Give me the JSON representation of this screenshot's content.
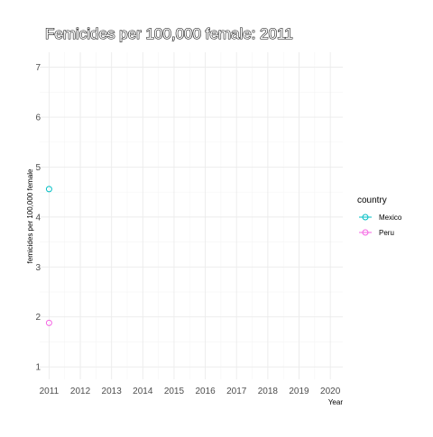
{
  "chart_data": {
    "type": "scatter",
    "title": "Femicides per 100,000 female: 2011",
    "xlabel": "Year",
    "ylabel": "femicides per 100,000 female",
    "x_ticks": [
      "2011",
      "2012",
      "2013",
      "2014",
      "2015",
      "2016",
      "2017",
      "2018",
      "2019",
      "2020"
    ],
    "y_ticks": [
      "1",
      "2",
      "3",
      "4",
      "5",
      "6",
      "7"
    ],
    "xlim": [
      2010.7,
      2020.4
    ],
    "ylim": [
      0.75,
      7.3
    ],
    "grid": true,
    "legend": {
      "title": "country",
      "placement": "right"
    },
    "series": [
      {
        "name": "Mexico",
        "color": "#00BFC4",
        "points": [
          {
            "x": 2011,
            "y": 4.56
          }
        ]
      },
      {
        "name": "Peru",
        "color": "#F564E3",
        "points": [
          {
            "x": 2011,
            "y": 1.88
          }
        ]
      }
    ]
  }
}
